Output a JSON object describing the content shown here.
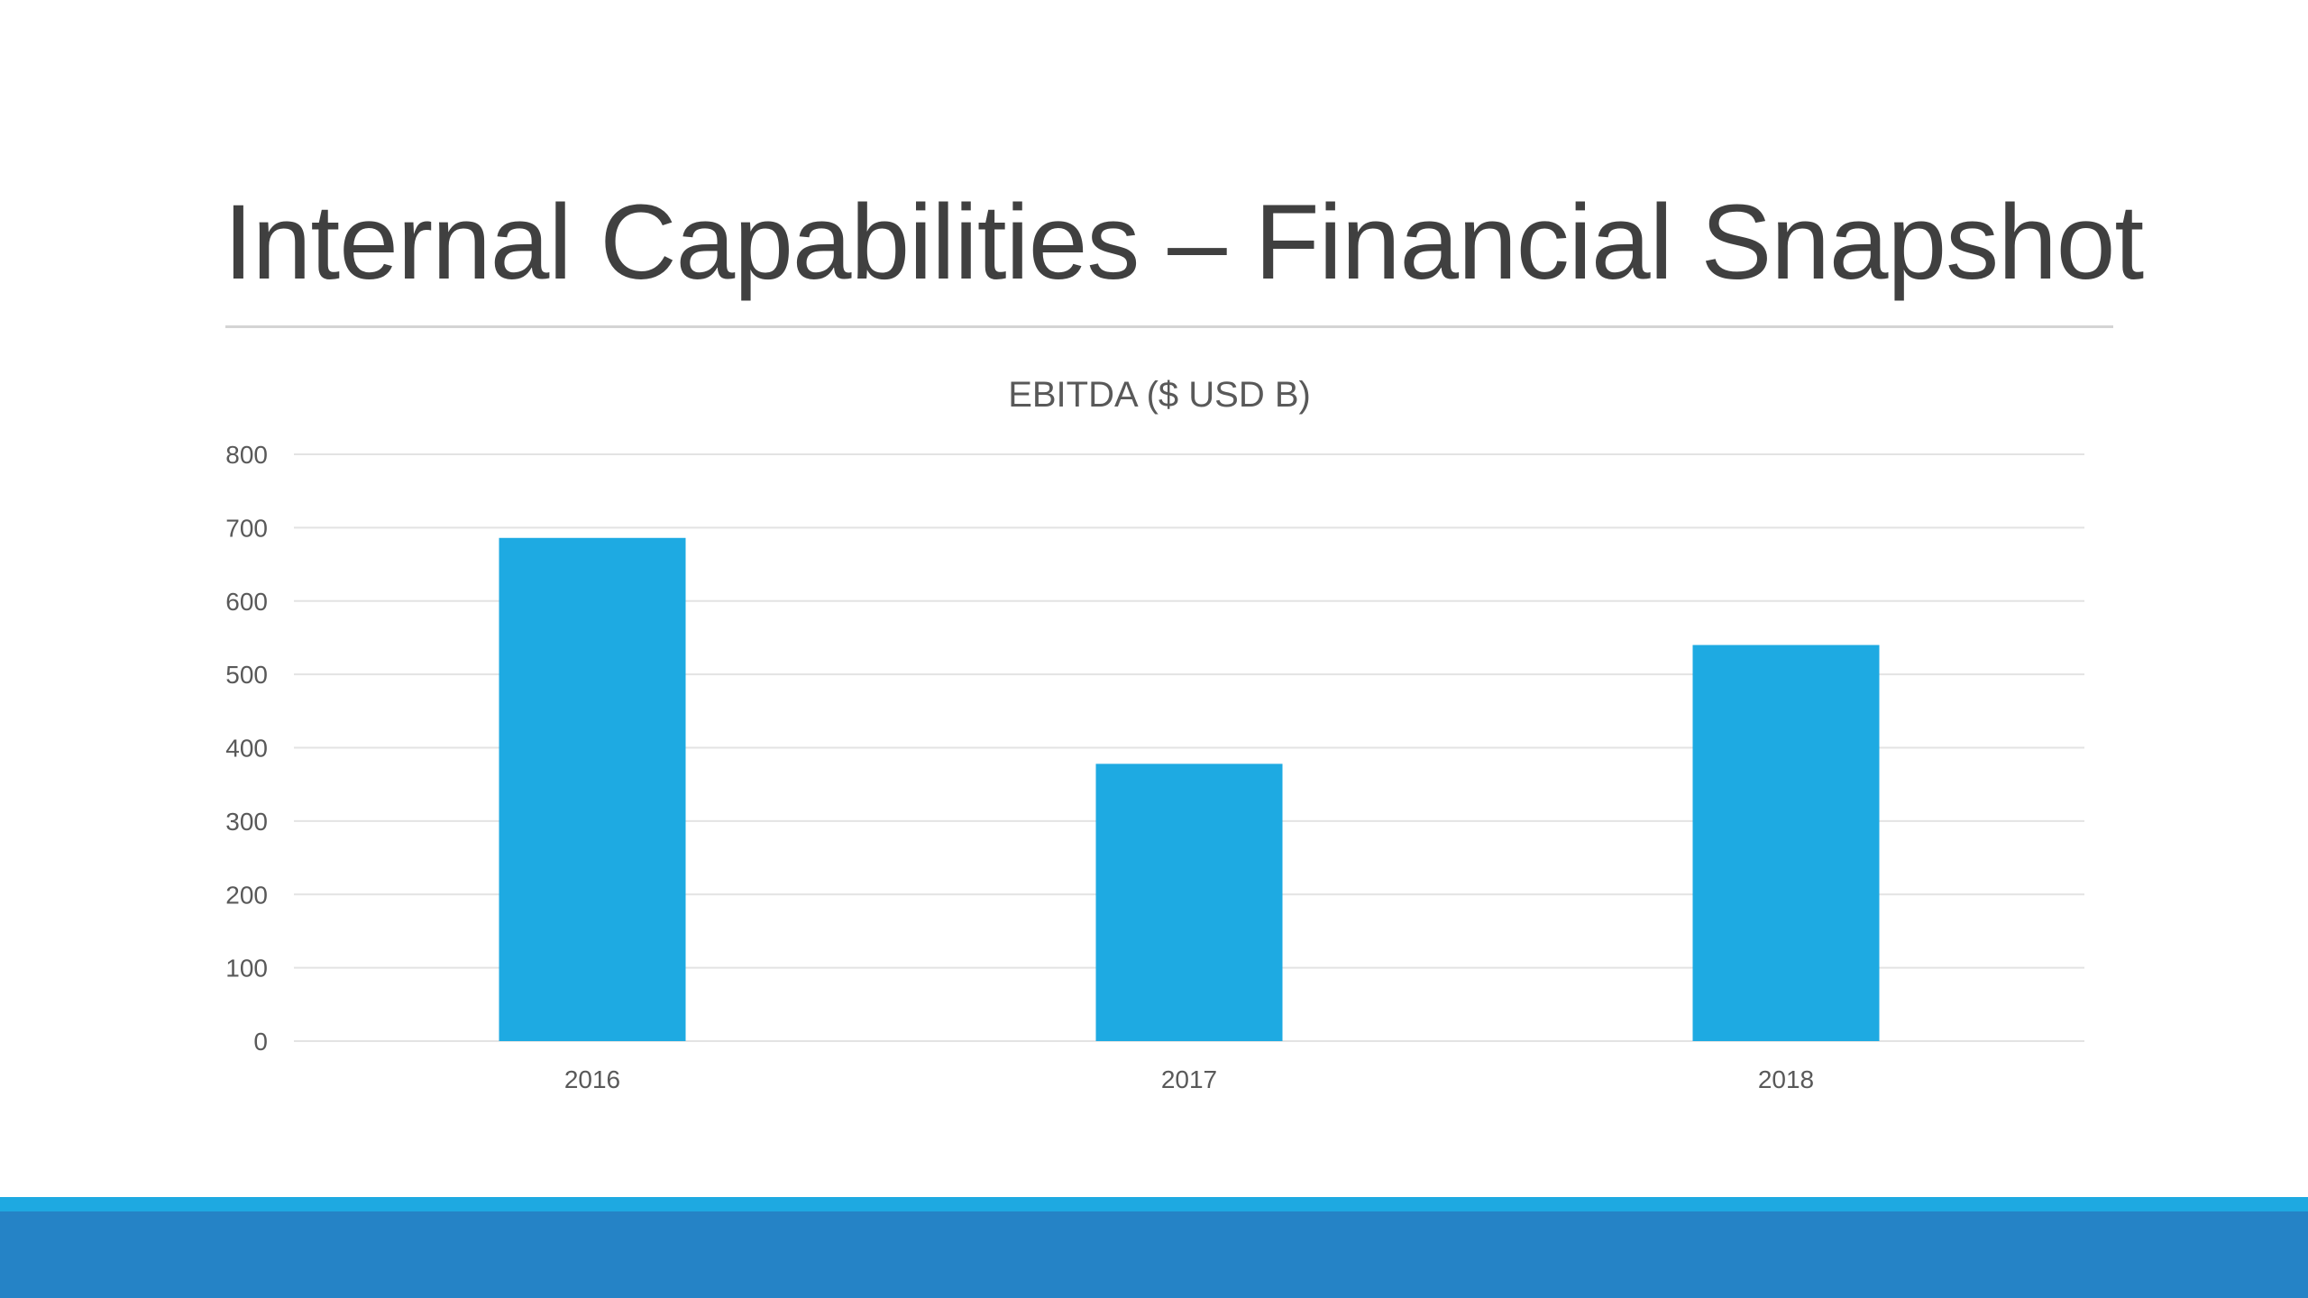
{
  "slide": {
    "title": "Internal Capabilities – Financial Snapshot"
  },
  "colors": {
    "bar": "#1eaae2",
    "band_light": "#1ea9e1",
    "band_dark": "#2583c6",
    "gridline": "#e3e3e3",
    "text": "#595959"
  },
  "chart_data": {
    "type": "bar",
    "title": "EBITDA ($ USD B)",
    "xlabel": "",
    "ylabel": "",
    "categories": [
      "2016",
      "2017",
      "2018"
    ],
    "values": [
      686,
      378,
      540
    ],
    "ylim": [
      0,
      800
    ],
    "yticks": [
      "0",
      "100",
      "200",
      "300",
      "400",
      "500",
      "600",
      "700",
      "800"
    ],
    "grid": true,
    "legend": "none"
  }
}
